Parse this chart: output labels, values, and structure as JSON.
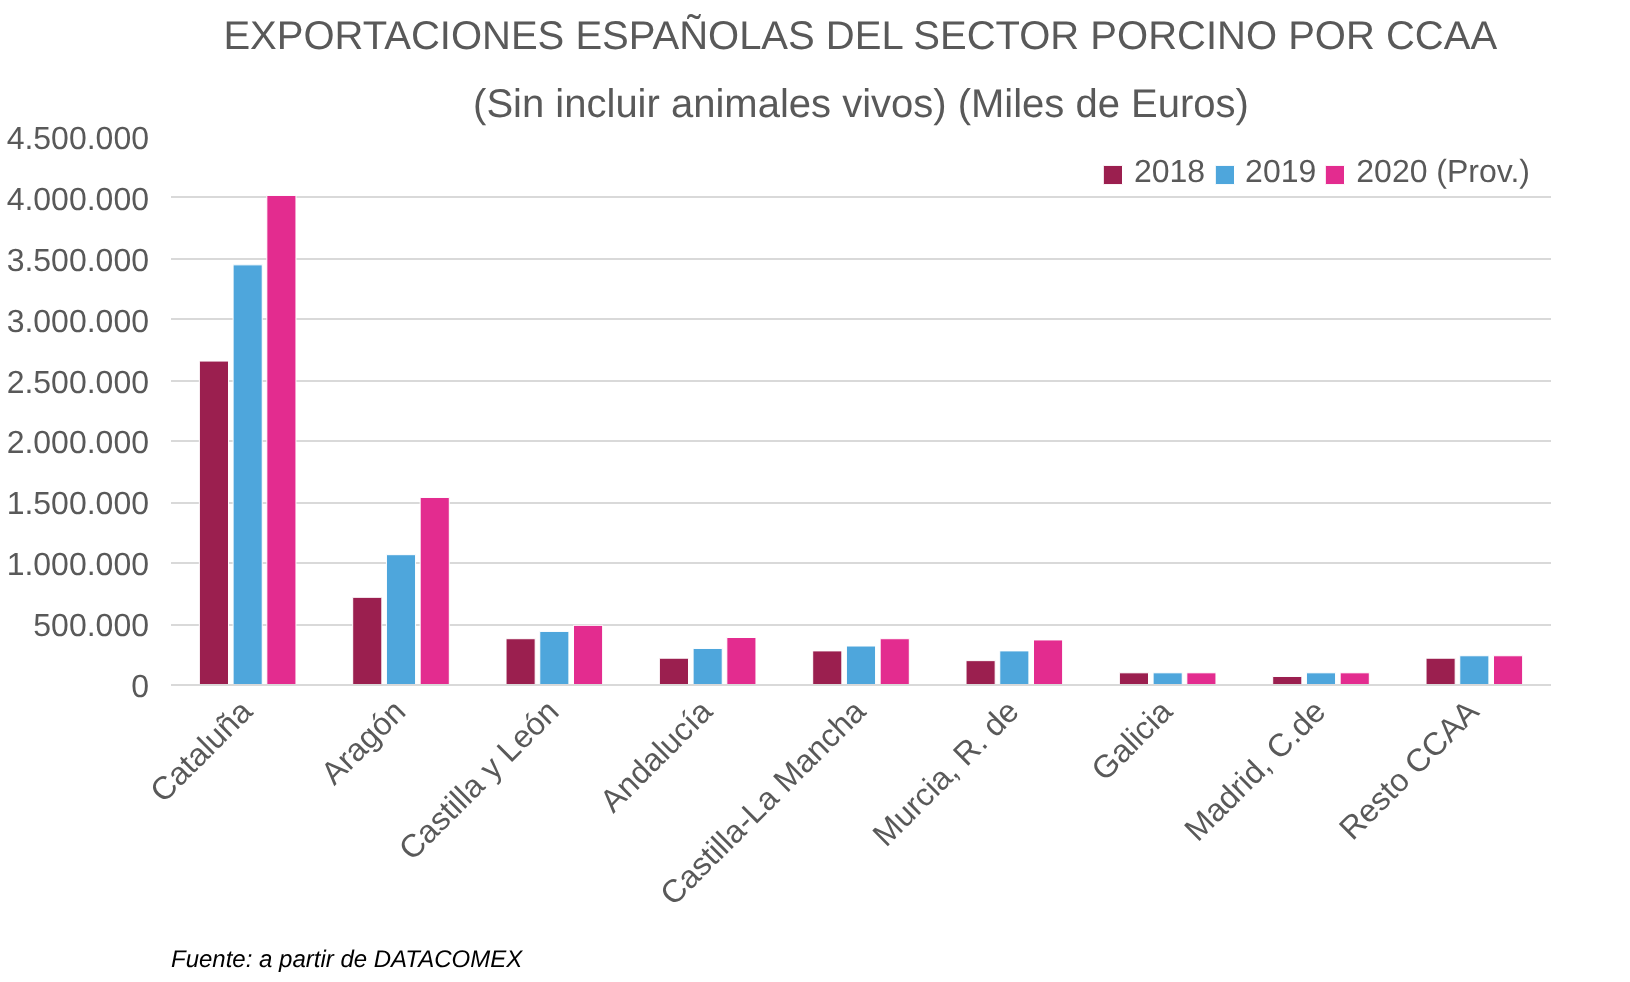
{
  "chart_data": {
    "type": "bar",
    "title": "EXPORTACIONES ESPAÑOLAS DEL SECTOR PORCINO POR CCAA",
    "subtitle": "(Sin incluir animales vivos) (Miles de Euros)",
    "categories": [
      "Cataluña",
      "Aragón",
      "Castilla y León",
      "Andalucía",
      "Castilla-La Mancha",
      "Murcia, R. de",
      "Galicia",
      "Madrid, C.de",
      "Resto CCAA"
    ],
    "series": [
      {
        "name": "2018",
        "color": "#9b1f4f",
        "values": [
          2660000,
          720000,
          380000,
          220000,
          280000,
          200000,
          100000,
          70000,
          220000
        ]
      },
      {
        "name": "2019",
        "color": "#4ea6dc",
        "values": [
          3450000,
          1070000,
          440000,
          300000,
          320000,
          280000,
          100000,
          100000,
          240000
        ]
      },
      {
        "name": "2020 (Prov.)",
        "color": "#e32c8f",
        "values": [
          4020000,
          1540000,
          490000,
          390000,
          380000,
          370000,
          100000,
          100000,
          240000
        ]
      }
    ],
    "ylim": [
      0,
      4500000
    ],
    "yticks": [
      {
        "value": 0,
        "label": "0"
      },
      {
        "value": 500000,
        "label": "500.000"
      },
      {
        "value": 1000000,
        "label": "1.000.000"
      },
      {
        "value": 1500000,
        "label": "1.500.000"
      },
      {
        "value": 2000000,
        "label": "2.000.000"
      },
      {
        "value": 2500000,
        "label": "2.500.000"
      },
      {
        "value": 3000000,
        "label": "3.000.000"
      },
      {
        "value": 3500000,
        "label": "3.500.000"
      },
      {
        "value": 4000000,
        "label": "4.000.000"
      },
      {
        "value": 4500000,
        "label": "4.500.000"
      }
    ],
    "grid": "y",
    "legend": "top right",
    "annotations": [
      "Fuente: a partir de DATACOMEX"
    ]
  }
}
